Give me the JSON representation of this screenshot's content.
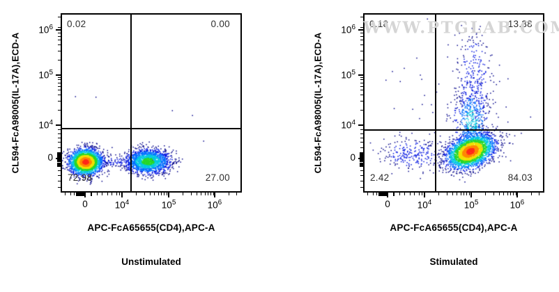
{
  "watermark": {
    "text": "WWW.PTGLAB.COM",
    "color": "#d5d5d5"
  },
  "palette": [
    "#000089",
    "#0014e0",
    "#0070ff",
    "#00c8e0",
    "#28d828",
    "#f0e000",
    "#ff8800",
    "#ff2a1a"
  ],
  "axes": {
    "scale": "biexponential (logicle); decades 10^4 to 10^6 labeled, linear region around 0",
    "x": {
      "majors": [
        {
          "label": "0",
          "f": 0.129
        },
        {
          "label": "10^4",
          "f": 0.336
        },
        {
          "label": "10^5",
          "f": 0.598
        },
        {
          "label": "10^6",
          "f": 0.855
        }
      ],
      "minors": [
        0.016,
        0.047,
        0.07,
        0.082,
        0.09,
        0.098,
        0.106,
        0.114,
        0.122,
        0.165,
        0.196,
        0.226,
        0.254,
        0.281,
        0.306,
        0.322,
        0.415,
        0.461,
        0.494,
        0.519,
        0.54,
        0.557,
        0.573,
        0.586,
        0.677,
        0.723,
        0.756,
        0.781,
        0.802,
        0.819,
        0.835,
        0.848,
        0.934,
        0.98
      ]
    },
    "y": {
      "majors": [
        {
          "label": "10^6",
          "f": 0.913
        },
        {
          "label": "10^5",
          "f": 0.657
        },
        {
          "label": "10^4",
          "f": 0.374
        },
        {
          "label": "0",
          "f": 0.185
        }
      ],
      "minors": [
        0.02,
        0.059,
        0.09,
        0.118,
        0.14,
        0.15,
        0.159,
        0.168,
        0.176,
        0.194,
        0.202,
        0.21,
        0.218,
        0.247,
        0.276,
        0.302,
        0.326,
        0.349,
        0.459,
        0.509,
        0.544,
        0.572,
        0.594,
        0.613,
        0.63,
        0.645,
        0.742,
        0.792,
        0.828,
        0.855,
        0.877,
        0.896,
        0.912,
        0.927,
        0.985
      ]
    }
  },
  "chart_data": [
    {
      "type": "scatter",
      "flavor": "flow-cytometry-pseudocolor-density",
      "caption": "Unstimulated",
      "x_label": "APC-FcA65655(CD4),APC-A",
      "y_label": "CL594-FcA98005(IL-17A),ECD-A",
      "x_ticks": [
        "0",
        "10^4",
        "10^5",
        "10^6"
      ],
      "y_ticks": [
        "0",
        "10^4",
        "10^5",
        "10^6"
      ],
      "gates": {
        "x_frac": 0.387,
        "y_frac": 0.354
      },
      "quadrants": {
        "ul": "0.02",
        "ur": "0.00",
        "ll": "72.98",
        "lr": "27.00"
      },
      "seed": 12345,
      "populations": [
        {
          "name": "CD4-negative IL-17A-negative cluster (near 0,0)",
          "cx": 0.133,
          "cy": 0.165,
          "sx": 0.045,
          "sy": 0.036,
          "rot": 0,
          "n": 2600,
          "depth": 7
        },
        {
          "name": "CD4-positive IL-17A-negative cluster (~3x10^4)",
          "cx": 0.482,
          "cy": 0.168,
          "sx": 0.062,
          "sy": 0.034,
          "rot": 0,
          "n": 1700,
          "depth": 4
        },
        {
          "name": "bridge events between clusters",
          "cx": 0.305,
          "cy": 0.167,
          "sx": 0.105,
          "sy": 0.016,
          "rot": 0,
          "n": 120,
          "depth": 1
        },
        {
          "name": "stray events",
          "cx": 0.33,
          "cy": 0.38,
          "sx": 0.28,
          "sy": 0.22,
          "rot": 0,
          "n": 9,
          "depth": 0
        }
      ]
    },
    {
      "type": "scatter",
      "flavor": "flow-cytometry-pseudocolor-density",
      "caption": "Stimulated",
      "x_label": "APC-FcA65655(CD4),APC-A",
      "y_label": "CL594-FcA98005(IL-17A),ECD-A",
      "x_ticks": [
        "0",
        "10^4",
        "10^5",
        "10^6"
      ],
      "y_ticks": [
        "0",
        "10^4",
        "10^5",
        "10^6"
      ],
      "gates": {
        "x_frac": 0.398,
        "y_frac": 0.346
      },
      "quadrants": {
        "ul": "0.18",
        "ur": "13.38",
        "ll": "2.42",
        "lr": "84.03"
      },
      "seed": 54321,
      "populations": [
        {
          "name": "CD4-positive main cluster (~10^5, tilted)",
          "cx": 0.594,
          "cy": 0.225,
          "sx": 0.068,
          "sy": 0.042,
          "rot": 24,
          "n": 3000,
          "depth": 7
        },
        {
          "name": "IL-17A-positive plume lower",
          "cx": 0.602,
          "cy": 0.4,
          "sx": 0.048,
          "sy": 0.09,
          "rot": 0,
          "n": 420,
          "depth": 3
        },
        {
          "name": "IL-17A-positive plume upper (to ~10^6)",
          "cx": 0.615,
          "cy": 0.62,
          "sx": 0.052,
          "sy": 0.155,
          "rot": 0,
          "n": 300,
          "depth": 1
        },
        {
          "name": "CD4-negative sparse events",
          "cx": 0.27,
          "cy": 0.21,
          "sx": 0.09,
          "sy": 0.048,
          "rot": 0,
          "n": 230,
          "depth": 1
        },
        {
          "name": "scattered events",
          "cx": 0.45,
          "cy": 0.4,
          "sx": 0.26,
          "sy": 0.2,
          "rot": 0,
          "n": 60,
          "depth": 0
        }
      ]
    }
  ]
}
